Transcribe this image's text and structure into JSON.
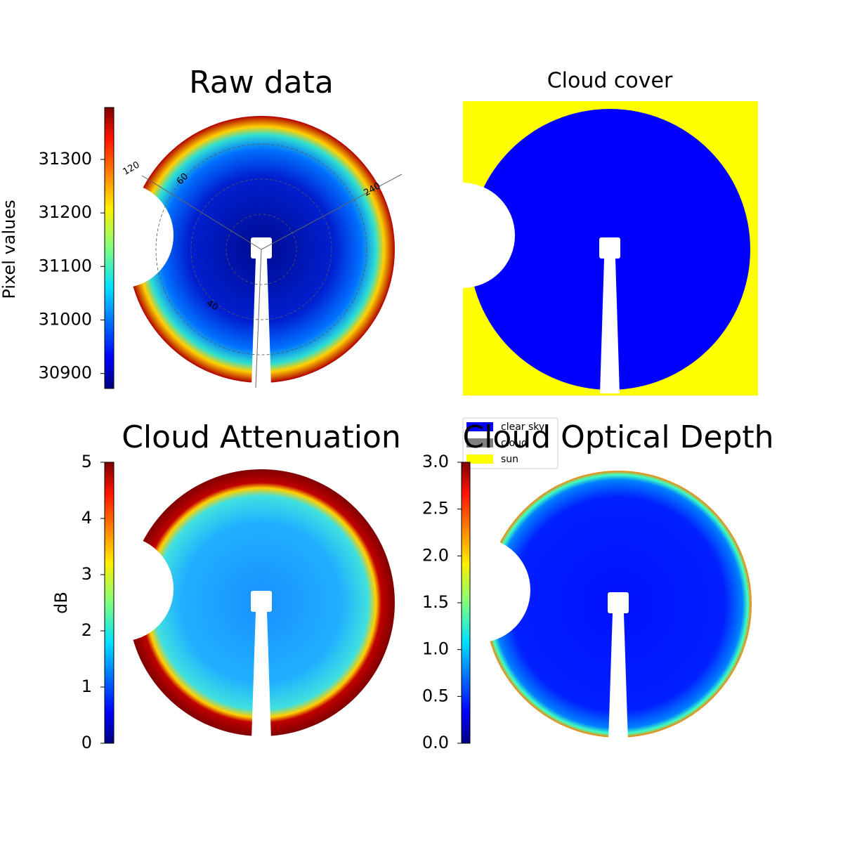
{
  "chart_data": [
    {
      "type": "image",
      "title": "Raw data",
      "colormap": "jet",
      "colorbar_label": "Pixel values",
      "ylim": [
        30872,
        31397
      ],
      "yticks": [
        30900,
        31000,
        31100,
        31200,
        31300
      ],
      "annotations": [
        "120",
        "60",
        "240",
        "40"
      ]
    },
    {
      "type": "categorical-image",
      "title": "Cloud cover",
      "categories": [
        "clear sky",
        "cloud",
        "sun"
      ],
      "colors": [
        "#0000ff",
        "#808080",
        "#ffff00"
      ]
    },
    {
      "type": "image",
      "title": "Cloud Attenuation",
      "colormap": "jet",
      "colorbar_label": "dB",
      "ylim": [
        0,
        5
      ],
      "yticks": [
        0,
        1,
        2,
        3,
        4,
        5
      ]
    },
    {
      "type": "image",
      "title": "Cloud Optical Depth",
      "colormap": "jet",
      "ylim": [
        0,
        3
      ],
      "yticks": [
        {
          "value": 0,
          "label": "0.0"
        },
        {
          "value": 0.5,
          "label": "0.5"
        },
        {
          "value": 1,
          "label": "1.0"
        },
        {
          "value": 1.5,
          "label": "1.5"
        },
        {
          "value": 2,
          "label": "2.0"
        },
        {
          "value": 2.5,
          "label": "2.5"
        },
        {
          "value": 3,
          "label": "3.0"
        }
      ]
    }
  ]
}
